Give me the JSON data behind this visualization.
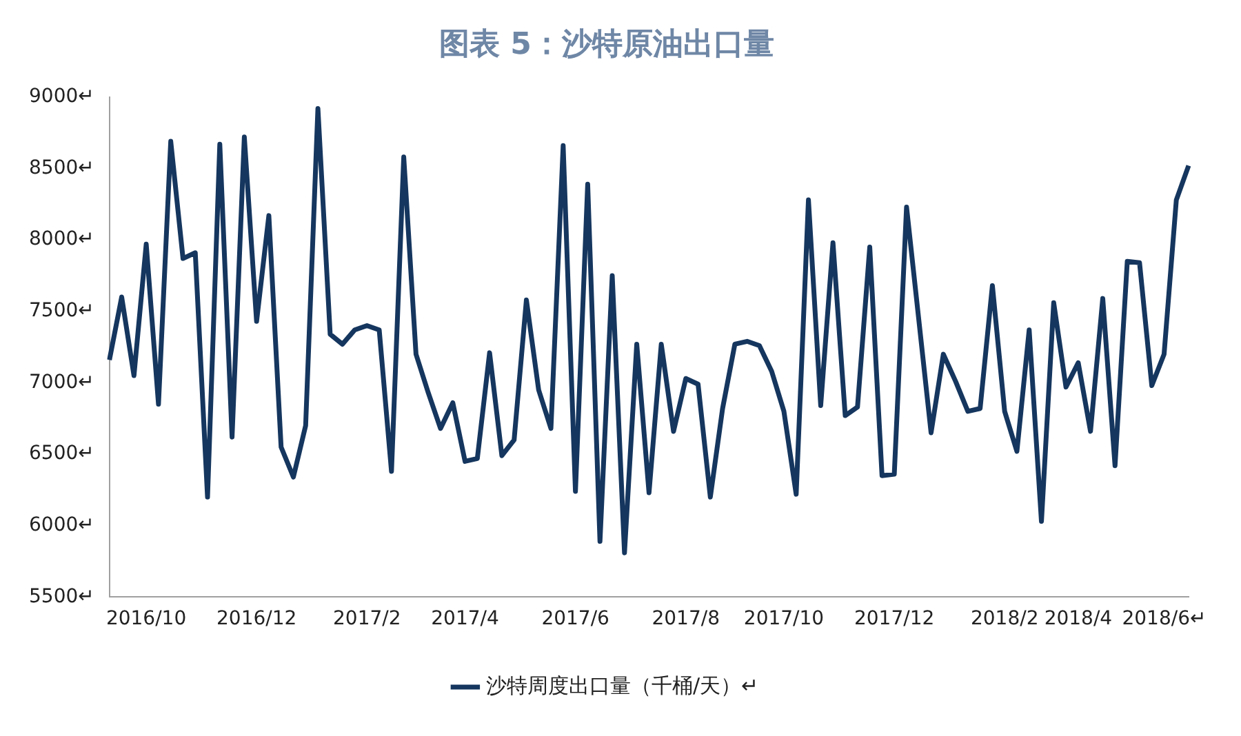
{
  "chart_data": {
    "type": "line",
    "title": "图表 5：沙特原油出口量",
    "categories": [
      null,
      null,
      null,
      "2016/10",
      null,
      null,
      null,
      null,
      null,
      null,
      null,
      null,
      "2016/12",
      null,
      null,
      null,
      null,
      null,
      null,
      null,
      null,
      "2017/2",
      null,
      null,
      null,
      null,
      null,
      null,
      null,
      "2017/4",
      null,
      null,
      null,
      null,
      null,
      null,
      null,
      null,
      "2017/6",
      null,
      null,
      null,
      null,
      null,
      null,
      null,
      null,
      "2017/8",
      null,
      null,
      null,
      null,
      null,
      null,
      null,
      "2017/10",
      null,
      null,
      null,
      null,
      null,
      null,
      null,
      null,
      "2017/12",
      null,
      null,
      null,
      null,
      null,
      null,
      null,
      null,
      "2018/2",
      null,
      null,
      null,
      null,
      null,
      "2018/4",
      null,
      null,
      null,
      null,
      null,
      null,
      "2018/6↵",
      null,
      null
    ],
    "series": [
      {
        "name": "沙特周度出口量（千桶/天）↵",
        "color": "#15365e",
        "values": [
          7160,
          7600,
          7050,
          7970,
          6850,
          8690,
          7870,
          7910,
          6200,
          8670,
          6620,
          8720,
          7430,
          8170,
          6550,
          6340,
          6700,
          8920,
          7340,
          7270,
          7370,
          7400,
          7370,
          6380,
          8580,
          7200,
          6930,
          6680,
          6860,
          6450,
          6470,
          7210,
          6490,
          6600,
          7580,
          6950,
          6680,
          8660,
          6240,
          8390,
          5890,
          7750,
          5810,
          7270,
          6230,
          7270,
          6660,
          7030,
          6990,
          6200,
          6820,
          7270,
          7290,
          7260,
          7080,
          6800,
          6220,
          8280,
          6840,
          7980,
          6770,
          6830,
          7950,
          6350,
          6360,
          8230,
          7440,
          6650,
          7200,
          7010,
          6800,
          6820,
          7680,
          6800,
          6520,
          7370,
          6030,
          7560,
          6970,
          7140,
          6660,
          7590,
          6420,
          7850,
          7840,
          6980,
          7200,
          8280,
          8520
        ]
      }
    ],
    "ylim": [
      5500,
      9000
    ],
    "yticks": [
      {
        "value": 5500,
        "label": "5500↵"
      },
      {
        "value": 6000,
        "label": "6000↵"
      },
      {
        "value": 6500,
        "label": "6500↵"
      },
      {
        "value": 7000,
        "label": "7000↵"
      },
      {
        "value": 7500,
        "label": "7500↵"
      },
      {
        "value": 8000,
        "label": "8000↵"
      },
      {
        "value": 8500,
        "label": "8500↵"
      },
      {
        "value": 9000,
        "label": "9000↵"
      }
    ],
    "grid": false,
    "legend": "bottom",
    "marker": "none",
    "line_style": "solid"
  }
}
